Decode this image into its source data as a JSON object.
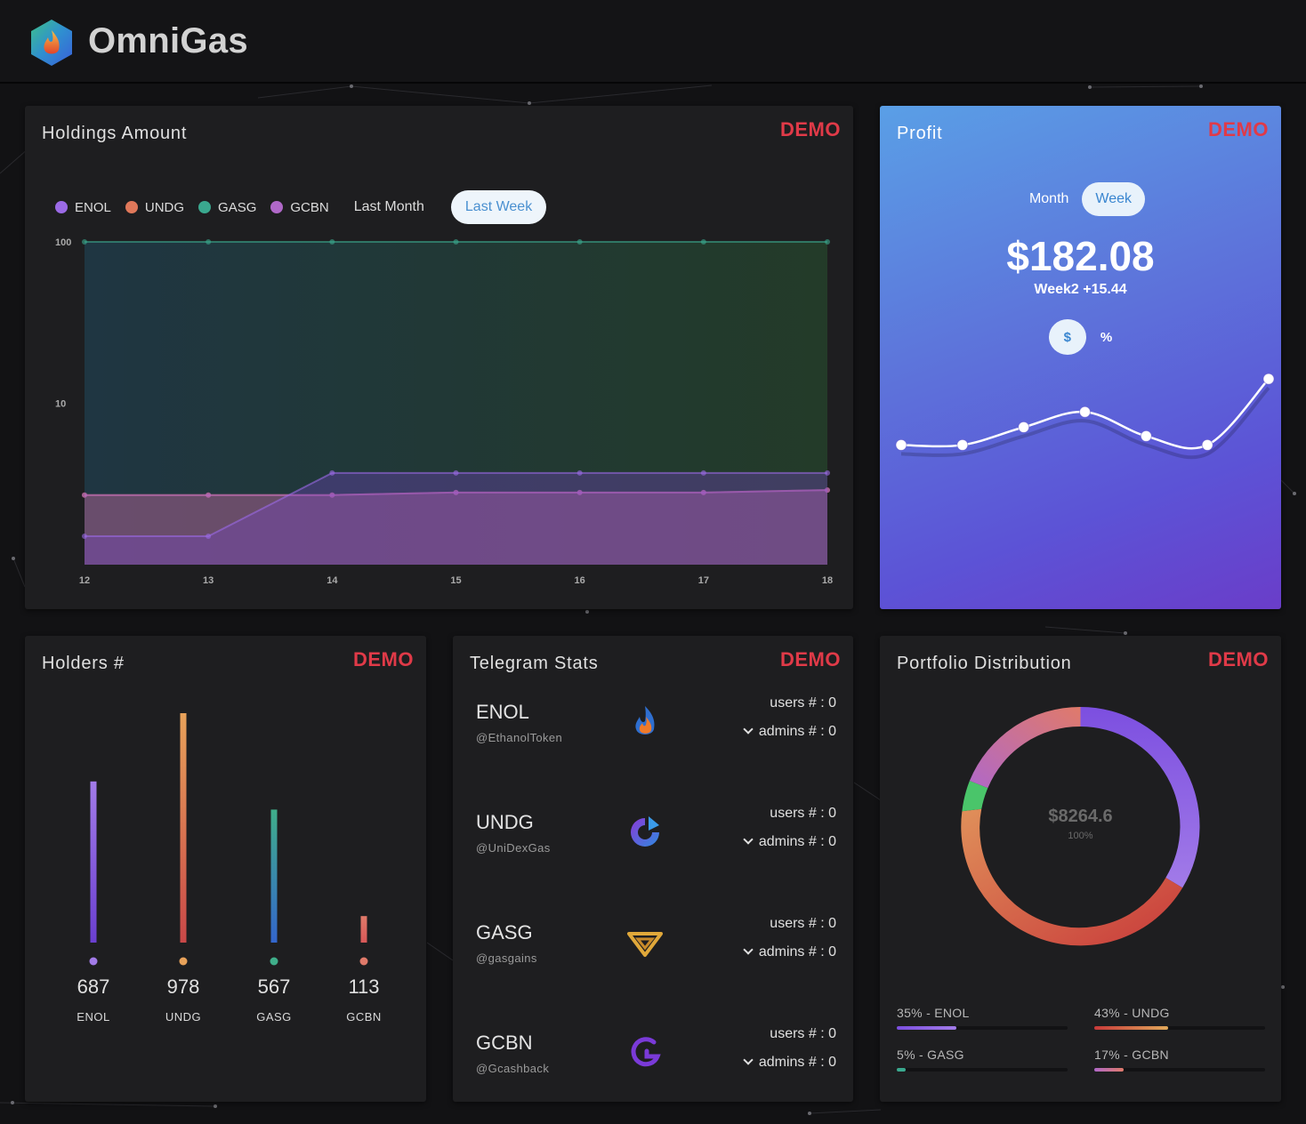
{
  "header": {
    "brand": "OmniGas",
    "logo_icon": "flame-hexagon-icon"
  },
  "demo_label": "DEMO",
  "holdings": {
    "title": "Holdings Amount",
    "legend": [
      {
        "name": "ENOL",
        "color": "#9b6ae6"
      },
      {
        "name": "UNDG",
        "color": "#e0785a"
      },
      {
        "name": "GASG",
        "color": "#3aa88e"
      },
      {
        "name": "GCBN",
        "color": "#b068c8"
      }
    ],
    "range_buttons": {
      "month": "Last Month",
      "week": "Last Week",
      "active": "week"
    }
  },
  "profit": {
    "title": "Profit",
    "toggle": {
      "month": "Month",
      "week": "Week",
      "active": "week"
    },
    "amount": "$182.08",
    "sub": "Week2 +15.44",
    "units": {
      "dollar": "$",
      "percent": "%",
      "active": "dollar"
    }
  },
  "holders": {
    "title": "Holders #",
    "items": [
      {
        "name": "ENOL",
        "value": "687",
        "color_top": "#a27be8",
        "color_bottom": "#6a3fd0"
      },
      {
        "name": "UNDG",
        "value": "978",
        "color_top": "#e8a25a",
        "color_bottom": "#c94848"
      },
      {
        "name": "GASG",
        "value": "567",
        "color_top": "#3fae8a",
        "color_bottom": "#3366cc"
      },
      {
        "name": "GCBN",
        "value": "113",
        "color_top": "#e07a6a",
        "color_bottom": "#d85858"
      }
    ]
  },
  "telegram": {
    "title": "Telegram Stats",
    "users_label": "users # : 0",
    "admins_label": "admins # : 0",
    "items": [
      {
        "name": "ENOL",
        "handle": "@EthanolToken",
        "icon": "flame-icon"
      },
      {
        "name": "UNDG",
        "handle": "@UniDexGas",
        "icon": "undg-logo-icon"
      },
      {
        "name": "GASG",
        "handle": "@gasgains",
        "icon": "gasg-logo-icon"
      },
      {
        "name": "GCBN",
        "handle": "@Gcashback",
        "icon": "gcbn-logo-icon"
      }
    ]
  },
  "portfolio": {
    "title": "Portfolio Distribution",
    "total": "$8264.6",
    "total_pct": "100%",
    "items": [
      {
        "label": "35% - ENOL",
        "pct": 35,
        "color": "#a06ee6"
      },
      {
        "label": "43% - UNDG",
        "pct": 43,
        "color": "#e0785a"
      },
      {
        "label": "5% - GASG",
        "pct": 5,
        "color": "#3aa88e"
      },
      {
        "label": "17% - GCBN",
        "pct": 17,
        "color": "#b068c8"
      }
    ]
  },
  "chart_data": [
    {
      "type": "area",
      "title": "Holdings Amount",
      "x": [
        12,
        13,
        14,
        15,
        16,
        17,
        18
      ],
      "y_scale": "log",
      "y_ticks": [
        100,
        10
      ],
      "ylim": [
        1,
        100
      ],
      "series": [
        {
          "name": "ENOL",
          "values": [
            1.5,
            1.5,
            3.7,
            3.7,
            3.7,
            3.7,
            3.7
          ]
        },
        {
          "name": "UNDG",
          "values": [
            2.7,
            2.7,
            2.7,
            2.8,
            2.8,
            2.8,
            2.9
          ]
        },
        {
          "name": "GASG",
          "values": [
            100,
            100,
            100,
            100,
            100,
            100,
            100
          ]
        },
        {
          "name": "GCBN",
          "values": [
            2.7,
            2.7,
            2.7,
            2.8,
            2.8,
            2.8,
            2.9
          ]
        }
      ]
    },
    {
      "type": "line",
      "title": "Profit",
      "x": [
        1,
        2,
        3,
        4,
        5,
        6,
        7
      ],
      "values": [
        148,
        148,
        162,
        174,
        155,
        148,
        200
      ]
    }
  ]
}
